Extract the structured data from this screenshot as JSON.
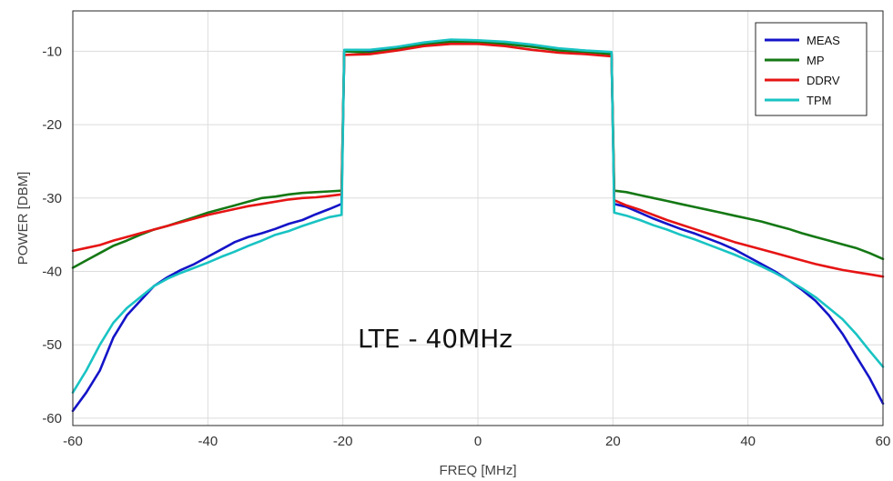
{
  "chart_data": {
    "type": "line",
    "xlabel": "FREQ [MHz]",
    "ylabel": "POWER [DBM]",
    "xlim": [
      -60,
      60
    ],
    "ylim": [
      -61,
      -4.5
    ],
    "xticks": [
      -60,
      -40,
      -20,
      0,
      20,
      40,
      60
    ],
    "yticks": [
      -60,
      -50,
      -40,
      -30,
      -20,
      -10
    ],
    "grid": true,
    "legend_position": "top-right",
    "annotation": "LTE -  40MHz",
    "series": [
      {
        "name": "MEAS",
        "color": "#1414c8",
        "x": [
          -60,
          -58,
          -56,
          -54,
          -52,
          -50,
          -48,
          -46,
          -44,
          -42,
          -40,
          -38,
          -36,
          -34,
          -32,
          -30,
          -28,
          -26,
          -24,
          -22,
          -20.2,
          -19.8,
          -16,
          -12,
          -8,
          -4,
          0,
          4,
          8,
          12,
          16,
          19.8,
          20.2,
          22,
          24,
          26,
          28,
          30,
          32,
          34,
          36,
          38,
          40,
          42,
          44,
          46,
          48,
          50,
          52,
          54,
          56,
          58,
          60
        ],
        "y": [
          -59,
          -56.5,
          -53.5,
          -49,
          -46,
          -44,
          -42,
          -40.8,
          -39.8,
          -39,
          -38,
          -37,
          -36,
          -35.3,
          -34.8,
          -34.2,
          -33.5,
          -33,
          -32.2,
          -31.5,
          -30.8,
          -10.0,
          -10.0,
          -9.6,
          -9.0,
          -8.6,
          -8.6,
          -8.9,
          -9.3,
          -9.8,
          -10.0,
          -10.3,
          -30.8,
          -31.2,
          -32,
          -32.8,
          -33.5,
          -34.2,
          -34.8,
          -35.5,
          -36.2,
          -37,
          -38,
          -39,
          -40,
          -41.2,
          -42.5,
          -44,
          -46,
          -48.5,
          -51.5,
          -54.5,
          -58
        ]
      },
      {
        "name": "MP",
        "color": "#147814",
        "x": [
          -60,
          -58,
          -56,
          -54,
          -52,
          -50,
          -48,
          -46,
          -44,
          -42,
          -40,
          -38,
          -36,
          -34,
          -32,
          -30,
          -28,
          -26,
          -24,
          -22,
          -20.2,
          -19.8,
          -16,
          -12,
          -8,
          -4,
          0,
          4,
          8,
          12,
          16,
          19.8,
          20.2,
          22,
          24,
          26,
          28,
          30,
          32,
          34,
          36,
          38,
          40,
          42,
          44,
          46,
          48,
          50,
          52,
          54,
          56,
          58,
          60
        ],
        "y": [
          -39.5,
          -38.5,
          -37.5,
          -36.5,
          -35.8,
          -35,
          -34.3,
          -33.8,
          -33.2,
          -32.6,
          -32,
          -31.5,
          -31,
          -30.5,
          -30,
          -29.8,
          -29.5,
          -29.3,
          -29.2,
          -29.1,
          -29,
          -10.0,
          -10.2,
          -9.7,
          -9.1,
          -8.7,
          -8.8,
          -9.0,
          -9.4,
          -9.9,
          -10.1,
          -10.4,
          -29,
          -29.2,
          -29.6,
          -30,
          -30.4,
          -30.8,
          -31.2,
          -31.6,
          -32,
          -32.4,
          -32.8,
          -33.2,
          -33.7,
          -34.2,
          -34.8,
          -35.3,
          -35.8,
          -36.3,
          -36.8,
          -37.5,
          -38.3
        ]
      },
      {
        "name": "DDRV",
        "color": "#e61414",
        "x": [
          -60,
          -58,
          -56,
          -54,
          -52,
          -50,
          -48,
          -46,
          -44,
          -42,
          -40,
          -38,
          -36,
          -34,
          -32,
          -30,
          -28,
          -26,
          -24,
          -22,
          -20.2,
          -19.8,
          -16,
          -12,
          -8,
          -4,
          0,
          4,
          8,
          12,
          16,
          19.8,
          20.2,
          22,
          24,
          26,
          28,
          30,
          32,
          34,
          36,
          38,
          40,
          42,
          44,
          46,
          48,
          50,
          52,
          54,
          56,
          58,
          60
        ],
        "y": [
          -37.2,
          -36.8,
          -36.4,
          -35.8,
          -35.3,
          -34.8,
          -34.3,
          -33.8,
          -33.3,
          -32.8,
          -32.3,
          -31.9,
          -31.5,
          -31.1,
          -30.8,
          -30.5,
          -30.2,
          -30,
          -29.9,
          -29.7,
          -29.5,
          -10.5,
          -10.4,
          -9.9,
          -9.3,
          -9.0,
          -9.0,
          -9.3,
          -9.8,
          -10.2,
          -10.4,
          -10.7,
          -30.3,
          -31,
          -31.6,
          -32.3,
          -33,
          -33.6,
          -34.2,
          -34.8,
          -35.4,
          -36,
          -36.5,
          -37,
          -37.5,
          -38,
          -38.5,
          -39,
          -39.4,
          -39.8,
          -40.1,
          -40.4,
          -40.7
        ]
      },
      {
        "name": "TPM",
        "color": "#19c3c3",
        "x": [
          -60,
          -58,
          -56,
          -54,
          -52,
          -50,
          -48,
          -46,
          -44,
          -42,
          -40,
          -38,
          -36,
          -34,
          -32,
          -30,
          -28,
          -26,
          -24,
          -22,
          -20.2,
          -19.8,
          -16,
          -12,
          -8,
          -4,
          0,
          4,
          8,
          12,
          16,
          19.8,
          20.2,
          22,
          24,
          26,
          28,
          30,
          32,
          34,
          36,
          38,
          40,
          42,
          44,
          46,
          48,
          50,
          52,
          54,
          56,
          58,
          60
        ],
        "y": [
          -56.5,
          -53.5,
          -50,
          -47,
          -45,
          -43.5,
          -42,
          -41,
          -40.2,
          -39.5,
          -38.8,
          -38,
          -37.3,
          -36.5,
          -35.8,
          -35,
          -34.5,
          -33.8,
          -33.2,
          -32.6,
          -32.3,
          -9.8,
          -9.8,
          -9.4,
          -8.8,
          -8.4,
          -8.5,
          -8.7,
          -9.1,
          -9.6,
          -9.9,
          -10.1,
          -32.0,
          -32.4,
          -33,
          -33.7,
          -34.3,
          -35,
          -35.6,
          -36.3,
          -37,
          -37.7,
          -38.5,
          -39.3,
          -40.2,
          -41.2,
          -42.3,
          -43.5,
          -45,
          -46.5,
          -48.5,
          -50.8,
          -53
        ]
      }
    ]
  }
}
